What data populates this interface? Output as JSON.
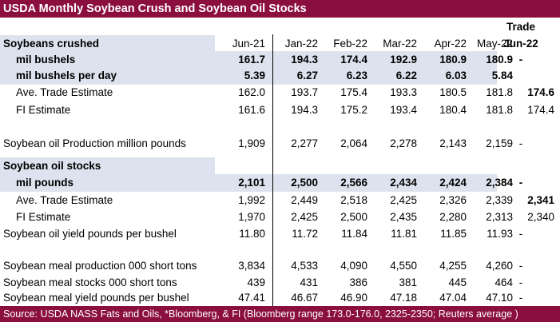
{
  "title": "USDA Monthly Soybean Crush and Soybean Oil Stocks",
  "trade_header": "Trade",
  "header": {
    "label": "Soybeans crushed",
    "cols": [
      "Jun-21",
      "Jan-22",
      "Feb-22",
      "Mar-22",
      "Apr-22",
      "May-22",
      "Jun-22"
    ]
  },
  "rows": [
    {
      "label": "mil bushels",
      "vals": [
        "161.7",
        "194.3",
        "174.4",
        "192.9",
        "180.9",
        "180.9",
        "-"
      ]
    },
    {
      "label": "mil bushels per day",
      "vals": [
        "5.39",
        "6.27",
        "6.23",
        "6.22",
        "6.03",
        "5.84",
        ""
      ]
    },
    {
      "label": "Ave. Trade Estimate",
      "vals": [
        "162.0",
        "193.7",
        "175.4",
        "193.3",
        "180.5",
        "181.8",
        "174.6"
      ]
    },
    {
      "label": "FI Estimate",
      "vals": [
        "161.6",
        "194.3",
        "175.2",
        "193.4",
        "180.4",
        "181.8",
        "174.4"
      ]
    },
    {
      "label": "Soybean oil Production million pounds",
      "vals": [
        "1,909",
        "2,277",
        "2,064",
        "2,278",
        "2,143",
        "2,159",
        "-"
      ]
    },
    {
      "label": "Soybean oil stocks",
      "vals": []
    },
    {
      "label": "mil pounds",
      "vals": [
        "2,101",
        "2,500",
        "2,566",
        "2,434",
        "2,424",
        "2,384",
        "-"
      ]
    },
    {
      "label": "Ave. Trade Estimate",
      "vals": [
        "1,992",
        "2,449",
        "2,518",
        "2,425",
        "2,326",
        "2,339",
        "2,341"
      ]
    },
    {
      "label": "FI Estimate",
      "vals": [
        "1,970",
        "2,425",
        "2,500",
        "2,435",
        "2,280",
        "2,313",
        "2,340"
      ]
    },
    {
      "label": "Soybean oil yield pounds per bushel",
      "vals": [
        "11.80",
        "11.72",
        "11.84",
        "11.81",
        "11.85",
        "11.93",
        "-"
      ]
    },
    {
      "label": "Soybean meal production 000 short tons",
      "vals": [
        "3,834",
        "4,533",
        "4,090",
        "4,550",
        "4,255",
        "4,260",
        "-"
      ]
    },
    {
      "label": "Soybean meal stocks 000 short tons",
      "vals": [
        "439",
        "431",
        "386",
        "381",
        "445",
        "464",
        "-"
      ]
    },
    {
      "label": "Soybean meal yield pounds per bushel",
      "vals": [
        "47.41",
        "46.67",
        "46.90",
        "47.18",
        "47.04",
        "47.10",
        "-"
      ]
    }
  ],
  "footer": "Source: USDA NASS Fats and Oils, *Bloomberg, & FI (Bloomberg range 173.0-176.0, 2325-2350;  Reuters average )",
  "colors": {
    "bar": "#8b0f3e",
    "shade": "#dde3ee"
  }
}
